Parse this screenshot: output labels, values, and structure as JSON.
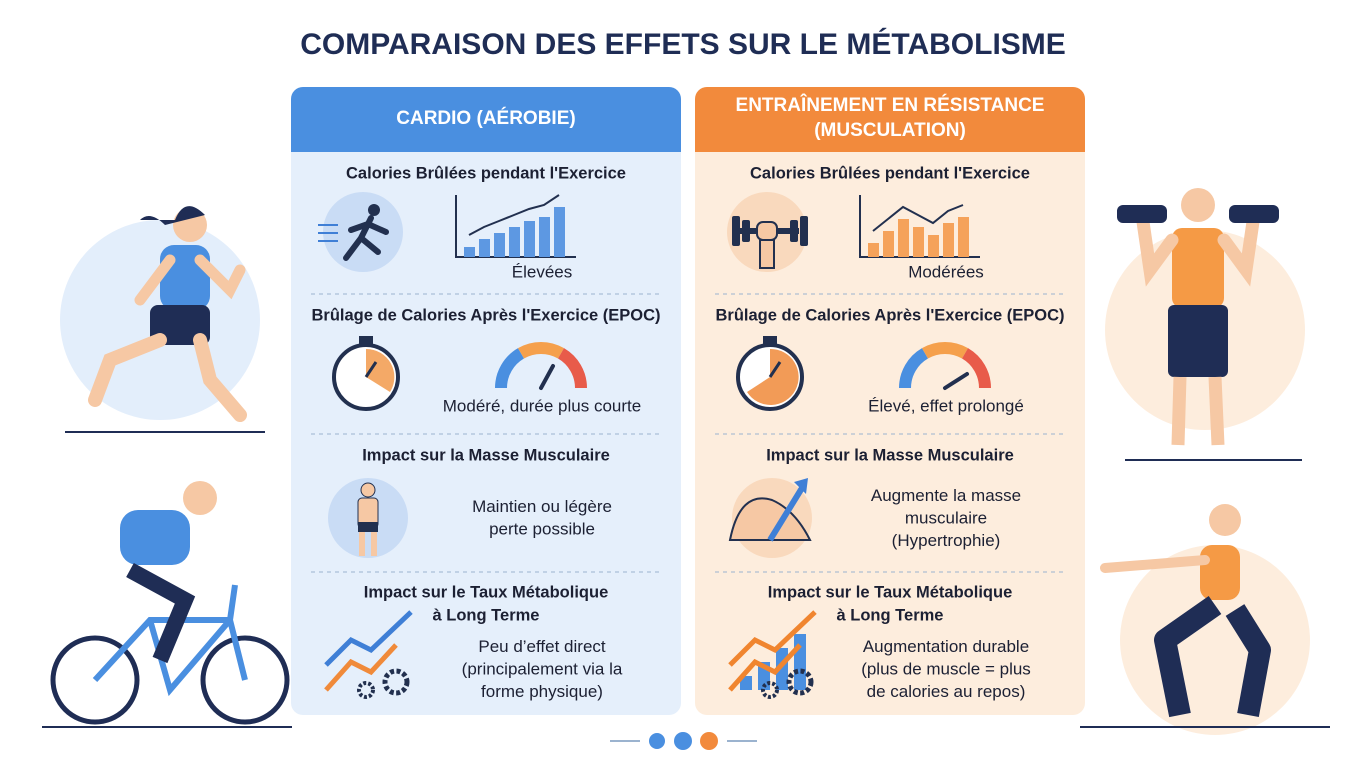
{
  "title": "COMPARAISON DES EFFETS SUR LE MÉTABOLISME",
  "columns": [
    {
      "header": [
        "CARDIO (AÉROBIE)"
      ],
      "sections": [
        {
          "heading": [
            "Calories Brûlées pendant l'Exercice"
          ],
          "value": [
            "Élevées"
          ]
        },
        {
          "heading": [
            "Brûlage de Calories Après l'Exercice (EPOC)"
          ],
          "value": [
            "Modéré, durée plus courte"
          ]
        },
        {
          "heading": [
            "Impact sur la Masse Musculaire"
          ],
          "value": [
            "Maintien ou légère",
            "perte possible"
          ]
        },
        {
          "heading": [
            "Impact sur le Taux Métabolique",
            "à Long Terme"
          ],
          "value": [
            "Peu d’effet direct",
            "(principalement via la",
            "forme physique)"
          ]
        }
      ]
    },
    {
      "header": [
        "ENTRAÎNEMENT EN RÉSISTANCE",
        "(MUSCULATION)"
      ],
      "sections": [
        {
          "heading": [
            "Calories Brûlées pendant l'Exercice"
          ],
          "value": [
            "Modérées"
          ]
        },
        {
          "heading": [
            "Brûlage de Calories Après l'Exercice (EPOC)"
          ],
          "value": [
            "Élevé, effet prolongé"
          ]
        },
        {
          "heading": [
            "Impact sur la Masse Musculaire"
          ],
          "value": [
            "Augmente la masse",
            "musculaire",
            "(Hypertrophie)"
          ]
        },
        {
          "heading": [
            "Impact sur le Taux Métabolique",
            "à Long Terme"
          ],
          "value": [
            "Augmentation durable",
            "(plus de muscle = plus",
            "de calories au repos)"
          ]
        }
      ]
    }
  ]
}
